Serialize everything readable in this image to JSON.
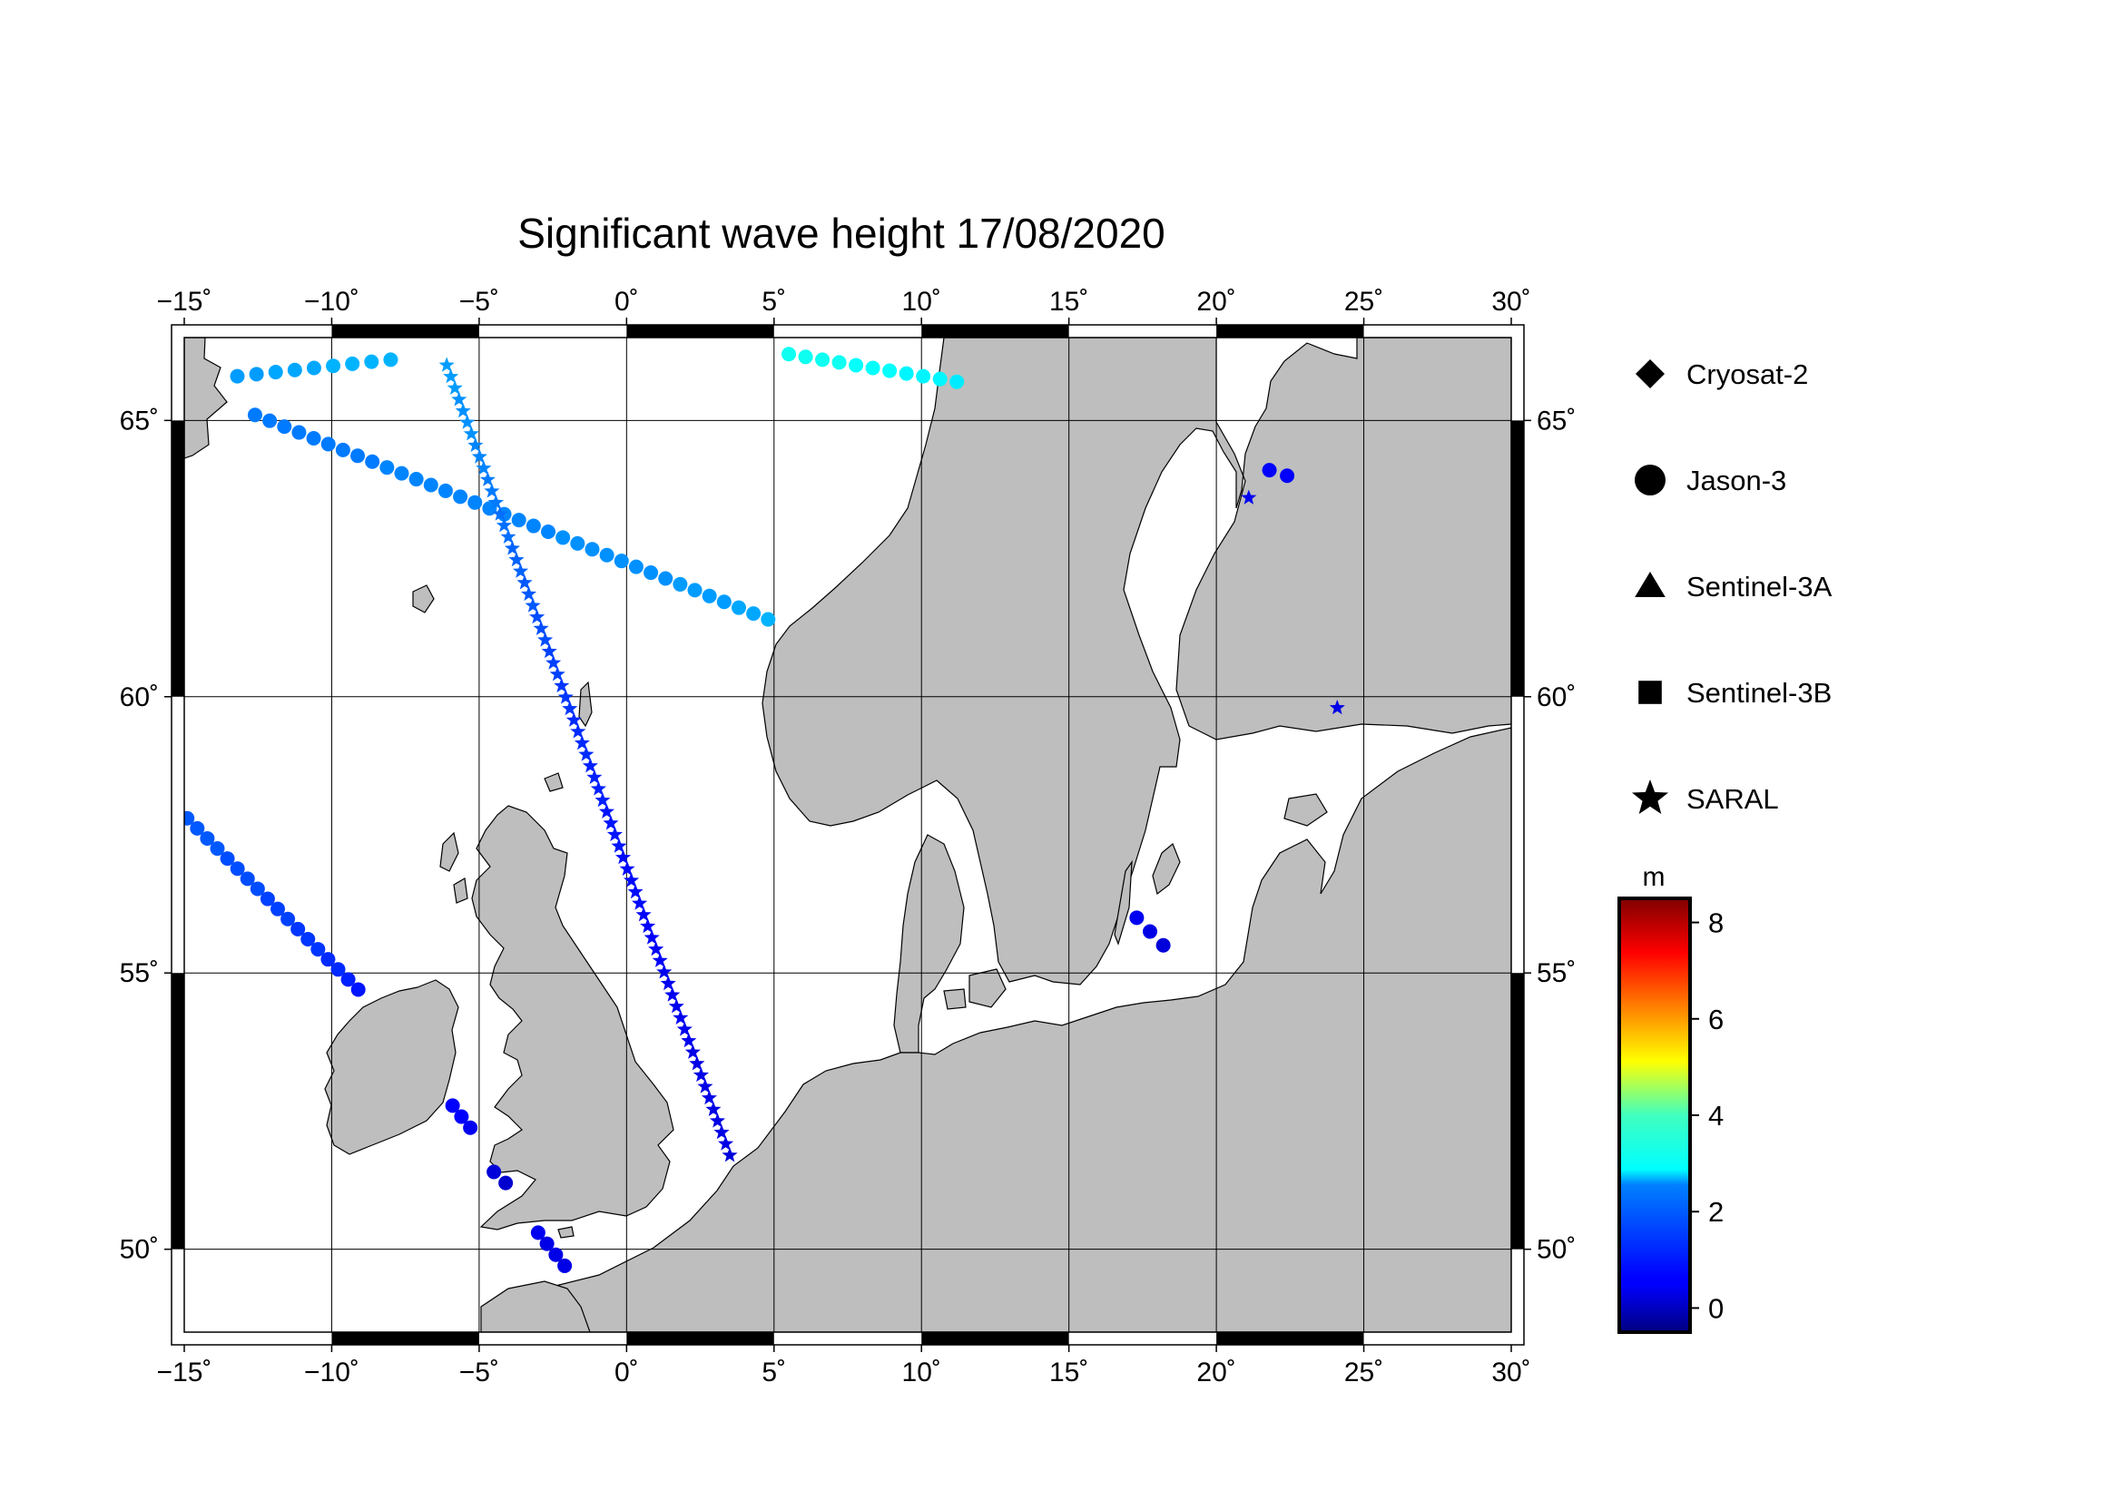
{
  "title": "Significant wave height 17/08/2020",
  "map": {
    "lon_range": [
      -15,
      30
    ],
    "lat_range": [
      48.5,
      66.5
    ],
    "lon_ticks": [
      -15,
      -10,
      -5,
      0,
      5,
      10,
      15,
      20,
      25,
      30
    ],
    "lat_ticks": [
      50,
      55,
      60,
      65
    ],
    "lon_labels": [
      "−15˚",
      "−10˚",
      "−5˚",
      "0˚",
      "5˚",
      "10˚",
      "15˚",
      "20˚",
      "25˚",
      "30˚"
    ],
    "lat_labels": [
      "50˚",
      "55˚",
      "60˚",
      "65˚"
    ],
    "land_color": "#bebebe",
    "sea_color": "#ffffff"
  },
  "legend": {
    "items": [
      {
        "label": "Cryosat-2",
        "symbol": "diamond"
      },
      {
        "label": "Jason-3",
        "symbol": "circle"
      },
      {
        "label": "Sentinel-3A",
        "symbol": "triangle"
      },
      {
        "label": "Sentinel-3B",
        "symbol": "square"
      },
      {
        "label": "SARAL",
        "symbol": "star"
      }
    ]
  },
  "colorbar": {
    "unit": "m",
    "min": -0.5,
    "max": 8.5,
    "ticks": [
      0,
      2,
      4,
      6,
      8
    ],
    "tick_labels": [
      "0",
      "2",
      "4",
      "6",
      "8"
    ]
  },
  "tracks": [
    {
      "satellite": "Jason-3",
      "symbol": "circle",
      "start": [
        -13.2,
        65.8
      ],
      "end": [
        -8,
        66.1
      ],
      "n": 9,
      "swh": [
        2.0,
        2.0,
        2.1,
        2.1,
        2.1,
        2.2,
        2.2,
        2.2,
        2.2
      ]
    },
    {
      "satellite": "Jason-3",
      "symbol": "circle",
      "start": [
        -12.6,
        65.1
      ],
      "end": [
        4.8,
        61.4
      ],
      "n": 36,
      "swh": [
        1.7,
        1.7,
        1.7,
        1.7,
        1.7,
        1.7,
        1.7,
        1.7,
        1.7,
        1.8,
        1.8,
        1.8,
        1.8,
        1.8,
        1.8,
        1.8,
        1.8,
        1.8,
        1.8,
        1.8,
        1.8,
        1.9,
        1.9,
        1.9,
        1.9,
        1.9,
        1.9,
        1.9,
        1.9,
        2.0,
        2.0,
        2.0,
        2.0,
        2.1,
        2.1,
        2.2
      ]
    },
    {
      "satellite": "Jason-3",
      "symbol": "circle",
      "start": [
        5.5,
        66.2
      ],
      "end": [
        11.2,
        65.7
      ],
      "n": 11,
      "swh": [
        3.0,
        3.0,
        3.0,
        3.0,
        2.9,
        2.9,
        2.9,
        2.8,
        2.8,
        2.8,
        2.7
      ]
    },
    {
      "satellite": "Jason-3",
      "symbol": "circle",
      "start": [
        -14.9,
        57.8
      ],
      "end": [
        -9.1,
        54.7
      ],
      "n": 18,
      "swh": [
        1.4,
        1.4,
        1.4,
        1.4,
        1.3,
        1.3,
        1.3,
        1.3,
        1.2,
        1.2,
        1.2,
        1.1,
        1.1,
        1.1,
        1.0,
        1.0,
        0.9,
        0.8
      ]
    },
    {
      "satellite": "Jason-3",
      "symbol": "circle",
      "start": [
        -5.9,
        52.6
      ],
      "end": [
        -5.3,
        52.2
      ],
      "n": 3,
      "swh": [
        0.6,
        0.6,
        0.5
      ]
    },
    {
      "satellite": "Jason-3",
      "symbol": "circle",
      "start": [
        -4.5,
        51.4
      ],
      "end": [
        -4.1,
        51.2
      ],
      "n": 2,
      "swh": [
        0.3,
        0.2
      ]
    },
    {
      "satellite": "Jason-3",
      "symbol": "circle",
      "start": [
        -3.0,
        50.3
      ],
      "end": [
        -2.1,
        49.7
      ],
      "n": 4,
      "swh": [
        0.5,
        0.4,
        0.4,
        0.4
      ]
    },
    {
      "satellite": "Jason-3",
      "symbol": "circle",
      "start": [
        17.3,
        56.0
      ],
      "end": [
        18.2,
        55.5
      ],
      "n": 3,
      "swh": [
        0.5,
        0.4,
        0.3
      ]
    },
    {
      "satellite": "Jason-3",
      "symbol": "circle",
      "start": [
        21.8,
        64.1
      ],
      "end": [
        22.4,
        64.0
      ],
      "n": 2,
      "swh": [
        0.6,
        0.6
      ]
    },
    {
      "satellite": "SARAL",
      "symbol": "star",
      "start": [
        -6.1,
        66.0
      ],
      "end": [
        3.5,
        51.7
      ],
      "n": 70,
      "swh": [
        2.0,
        2.0,
        2.0,
        1.9,
        1.9,
        1.9,
        1.9,
        1.8,
        1.8,
        1.8,
        1.7,
        1.7,
        1.7,
        1.6,
        1.6,
        1.6,
        1.5,
        1.5,
        1.5,
        1.4,
        1.4,
        1.4,
        1.3,
        1.3,
        1.3,
        1.2,
        1.2,
        1.2,
        1.1,
        1.1,
        1.1,
        1.0,
        1.0,
        1.0,
        1.0,
        0.9,
        0.9,
        0.9,
        0.9,
        0.8,
        0.8,
        0.8,
        0.8,
        0.7,
        0.7,
        0.7,
        0.7,
        0.7,
        0.6,
        0.6,
        0.6,
        0.6,
        0.6,
        0.5,
        0.5,
        0.5,
        0.5,
        0.5,
        0.5,
        0.5,
        0.4,
        0.4,
        0.4,
        0.4,
        0.4,
        0.4,
        0.4,
        0.4,
        0.4,
        0.3
      ]
    },
    {
      "satellite": "SARAL",
      "symbol": "star",
      "start": [
        21.1,
        63.6
      ],
      "end": [
        21.1,
        63.6
      ],
      "n": 1,
      "swh": [
        0.5
      ]
    },
    {
      "satellite": "SARAL",
      "symbol": "star",
      "start": [
        24.1,
        59.8
      ],
      "end": [
        24.1,
        59.8
      ],
      "n": 1,
      "swh": [
        0.4
      ]
    }
  ]
}
